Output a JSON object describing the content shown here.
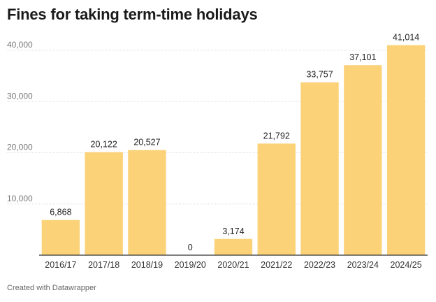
{
  "title": "Fines for taking term-time holidays",
  "credit": "Created with Datawrapper",
  "colors": {
    "bar": "#fbd278",
    "grid": "#e0e0e0",
    "axis": "#333333"
  },
  "chart_data": {
    "type": "bar",
    "categories": [
      "2016/17",
      "2017/18",
      "2018/19",
      "2019/20",
      "2020/21",
      "2021/22",
      "2022/23",
      "2023/24",
      "2024/25"
    ],
    "values": [
      6868,
      20122,
      20527,
      0,
      3174,
      21792,
      33757,
      37101,
      41014
    ],
    "value_labels": [
      "6,868",
      "20,122",
      "20,527",
      "0",
      "3,174",
      "21,792",
      "33,757",
      "37,101",
      "41,014"
    ],
    "yticks": [
      10000,
      20000,
      30000,
      40000
    ],
    "ytick_labels": [
      "10,000",
      "20,000",
      "30,000",
      "40,000"
    ],
    "ylim": [
      0,
      40000
    ],
    "grid": true
  }
}
